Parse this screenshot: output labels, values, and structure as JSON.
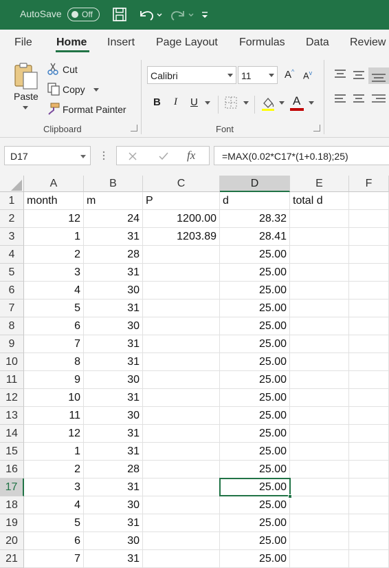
{
  "titlebar": {
    "autosave_label": "AutoSave",
    "autosave_state": "Off",
    "bg_color": "#217346"
  },
  "tabs": [
    {
      "label": "File",
      "active": false
    },
    {
      "label": "Home",
      "active": true
    },
    {
      "label": "Insert",
      "active": false
    },
    {
      "label": "Page Layout",
      "active": false
    },
    {
      "label": "Formulas",
      "active": false
    },
    {
      "label": "Data",
      "active": false
    },
    {
      "label": "Review",
      "active": false
    }
  ],
  "clipboard": {
    "paste_label": "Paste",
    "cut_label": "Cut",
    "copy_label": "Copy",
    "format_painter_label": "Format Painter",
    "group_label": "Clipboard"
  },
  "font": {
    "font_name": "Calibri",
    "font_size": "11",
    "bold": "B",
    "italic": "I",
    "underline": "U",
    "grow": "A",
    "shrink": "A",
    "font_color_label": "A",
    "font_color": "#c00000",
    "group_label": "Font"
  },
  "formula_bar": {
    "name_box": "D17",
    "fx": "fx",
    "formula": "=MAX(0.02*C17*(1+0.18);25)"
  },
  "sheet": {
    "columns": [
      "A",
      "B",
      "C",
      "D",
      "E",
      "F"
    ],
    "selected_column": "D",
    "selected_row": 17,
    "rows": [
      {
        "n": "1",
        "A": "month",
        "B": "m",
        "C": "P",
        "D": "d",
        "E": "total d"
      },
      {
        "n": "2",
        "A": "12",
        "B": "24",
        "C": "1200.00",
        "D": "28.32",
        "E": ""
      },
      {
        "n": "3",
        "A": "1",
        "B": "31",
        "C": "1203.89",
        "D": "28.41",
        "E": ""
      },
      {
        "n": "4",
        "A": "2",
        "B": "28",
        "C": "",
        "D": "25.00",
        "E": ""
      },
      {
        "n": "5",
        "A": "3",
        "B": "31",
        "C": "",
        "D": "25.00",
        "E": ""
      },
      {
        "n": "6",
        "A": "4",
        "B": "30",
        "C": "",
        "D": "25.00",
        "E": ""
      },
      {
        "n": "7",
        "A": "5",
        "B": "31",
        "C": "",
        "D": "25.00",
        "E": ""
      },
      {
        "n": "8",
        "A": "6",
        "B": "30",
        "C": "",
        "D": "25.00",
        "E": ""
      },
      {
        "n": "9",
        "A": "7",
        "B": "31",
        "C": "",
        "D": "25.00",
        "E": ""
      },
      {
        "n": "10",
        "A": "8",
        "B": "31",
        "C": "",
        "D": "25.00",
        "E": ""
      },
      {
        "n": "11",
        "A": "9",
        "B": "30",
        "C": "",
        "D": "25.00",
        "E": ""
      },
      {
        "n": "12",
        "A": "10",
        "B": "31",
        "C": "",
        "D": "25.00",
        "E": ""
      },
      {
        "n": "13",
        "A": "11",
        "B": "30",
        "C": "",
        "D": "25.00",
        "E": ""
      },
      {
        "n": "14",
        "A": "12",
        "B": "31",
        "C": "",
        "D": "25.00",
        "E": ""
      },
      {
        "n": "15",
        "A": "1",
        "B": "31",
        "C": "",
        "D": "25.00",
        "E": ""
      },
      {
        "n": "16",
        "A": "2",
        "B": "28",
        "C": "",
        "D": "25.00",
        "E": ""
      },
      {
        "n": "17",
        "A": "3",
        "B": "31",
        "C": "",
        "D": "25.00",
        "E": ""
      },
      {
        "n": "18",
        "A": "4",
        "B": "30",
        "C": "",
        "D": "25.00",
        "E": ""
      },
      {
        "n": "19",
        "A": "5",
        "B": "31",
        "C": "",
        "D": "25.00",
        "E": ""
      },
      {
        "n": "20",
        "A": "6",
        "B": "30",
        "C": "",
        "D": "25.00",
        "E": ""
      },
      {
        "n": "21",
        "A": "7",
        "B": "31",
        "C": "",
        "D": "25.00",
        "E": ""
      }
    ]
  },
  "accent_color": "#217346"
}
